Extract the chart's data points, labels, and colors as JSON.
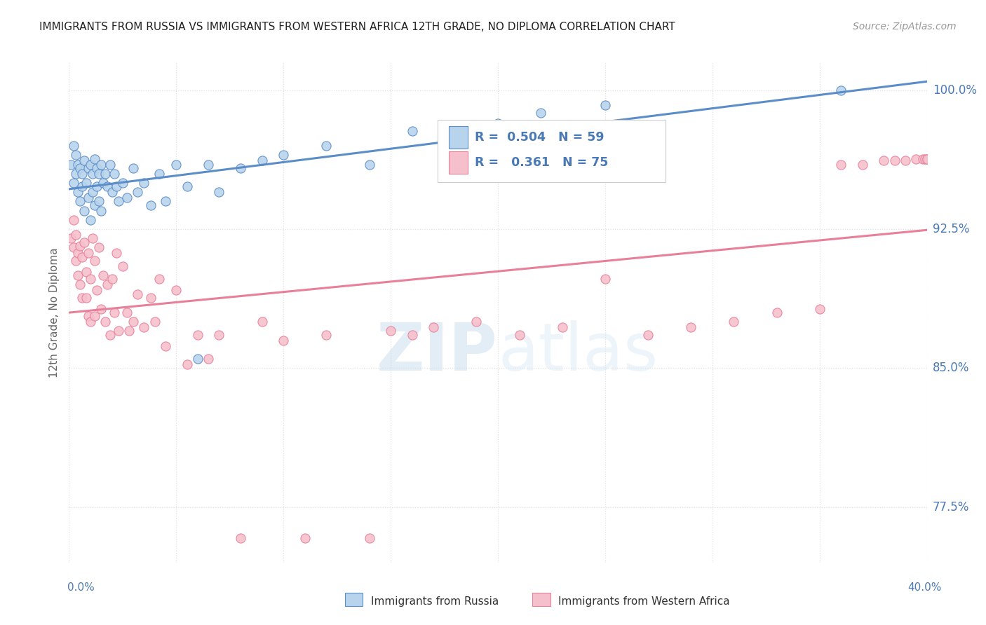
{
  "title": "IMMIGRANTS FROM RUSSIA VS IMMIGRANTS FROM WESTERN AFRICA 12TH GRADE, NO DIPLOMA CORRELATION CHART",
  "source": "Source: ZipAtlas.com",
  "ylabel": "12th Grade, No Diploma",
  "yticks": [
    0.775,
    0.85,
    0.925,
    1.0
  ],
  "ytick_labels": [
    "77.5%",
    "85.0%",
    "92.5%",
    "100.0%"
  ],
  "xmin": 0.0,
  "xmax": 0.4,
  "ymin": 0.745,
  "ymax": 1.015,
  "russia_R": 0.504,
  "russia_N": 59,
  "wafric_R": 0.361,
  "wafric_N": 75,
  "russia_color": "#b8d4ec",
  "wafric_color": "#f5c0cc",
  "russia_edge_color": "#5b8dc8",
  "wafric_edge_color": "#e8809a",
  "russia_line_color": "#5b8dc8",
  "wafric_line_color": "#e8809a",
  "legend_text_color": "#4a7ab5",
  "title_color": "#222222",
  "grid_color": "#e0e0e0",
  "background_color": "#ffffff",
  "watermark_zip": "ZIP",
  "watermark_atlas": "atlas",
  "russia_x": [
    0.001,
    0.002,
    0.002,
    0.003,
    0.003,
    0.004,
    0.004,
    0.005,
    0.005,
    0.006,
    0.006,
    0.007,
    0.007,
    0.008,
    0.009,
    0.009,
    0.01,
    0.01,
    0.011,
    0.011,
    0.012,
    0.012,
    0.013,
    0.013,
    0.014,
    0.014,
    0.015,
    0.015,
    0.016,
    0.017,
    0.018,
    0.019,
    0.02,
    0.021,
    0.022,
    0.023,
    0.025,
    0.027,
    0.03,
    0.032,
    0.035,
    0.038,
    0.042,
    0.045,
    0.05,
    0.055,
    0.06,
    0.065,
    0.07,
    0.08,
    0.09,
    0.1,
    0.12,
    0.14,
    0.16,
    0.2,
    0.22,
    0.25,
    0.36
  ],
  "russia_y": [
    0.96,
    0.97,
    0.95,
    0.965,
    0.955,
    0.96,
    0.945,
    0.958,
    0.94,
    0.955,
    0.948,
    0.962,
    0.935,
    0.95,
    0.958,
    0.942,
    0.96,
    0.93,
    0.955,
    0.945,
    0.963,
    0.938,
    0.958,
    0.948,
    0.955,
    0.94,
    0.96,
    0.935,
    0.95,
    0.955,
    0.948,
    0.96,
    0.945,
    0.955,
    0.948,
    0.94,
    0.95,
    0.942,
    0.958,
    0.945,
    0.95,
    0.938,
    0.955,
    0.94,
    0.96,
    0.948,
    0.855,
    0.96,
    0.945,
    0.958,
    0.962,
    0.965,
    0.97,
    0.96,
    0.978,
    0.982,
    0.988,
    0.992,
    1.0
  ],
  "wafric_x": [
    0.001,
    0.002,
    0.002,
    0.003,
    0.003,
    0.004,
    0.004,
    0.005,
    0.005,
    0.006,
    0.006,
    0.007,
    0.008,
    0.008,
    0.009,
    0.009,
    0.01,
    0.01,
    0.011,
    0.012,
    0.012,
    0.013,
    0.014,
    0.015,
    0.016,
    0.017,
    0.018,
    0.019,
    0.02,
    0.021,
    0.022,
    0.023,
    0.025,
    0.027,
    0.028,
    0.03,
    0.032,
    0.035,
    0.038,
    0.04,
    0.042,
    0.045,
    0.05,
    0.055,
    0.06,
    0.065,
    0.07,
    0.08,
    0.09,
    0.1,
    0.11,
    0.12,
    0.14,
    0.15,
    0.16,
    0.17,
    0.19,
    0.21,
    0.23,
    0.25,
    0.27,
    0.29,
    0.31,
    0.33,
    0.35,
    0.36,
    0.37,
    0.38,
    0.385,
    0.39,
    0.395,
    0.398,
    0.399,
    0.4,
    0.4
  ],
  "wafric_y": [
    0.92,
    0.915,
    0.93,
    0.908,
    0.922,
    0.912,
    0.9,
    0.916,
    0.895,
    0.91,
    0.888,
    0.918,
    0.902,
    0.888,
    0.912,
    0.878,
    0.898,
    0.875,
    0.92,
    0.908,
    0.878,
    0.892,
    0.915,
    0.882,
    0.9,
    0.875,
    0.895,
    0.868,
    0.898,
    0.88,
    0.912,
    0.87,
    0.905,
    0.88,
    0.87,
    0.875,
    0.89,
    0.872,
    0.888,
    0.875,
    0.898,
    0.862,
    0.892,
    0.852,
    0.868,
    0.855,
    0.868,
    0.758,
    0.875,
    0.865,
    0.758,
    0.868,
    0.758,
    0.87,
    0.868,
    0.872,
    0.875,
    0.868,
    0.872,
    0.898,
    0.868,
    0.872,
    0.875,
    0.88,
    0.882,
    0.96,
    0.96,
    0.962,
    0.962,
    0.962,
    0.963,
    0.963,
    0.963,
    0.963,
    0.963
  ]
}
